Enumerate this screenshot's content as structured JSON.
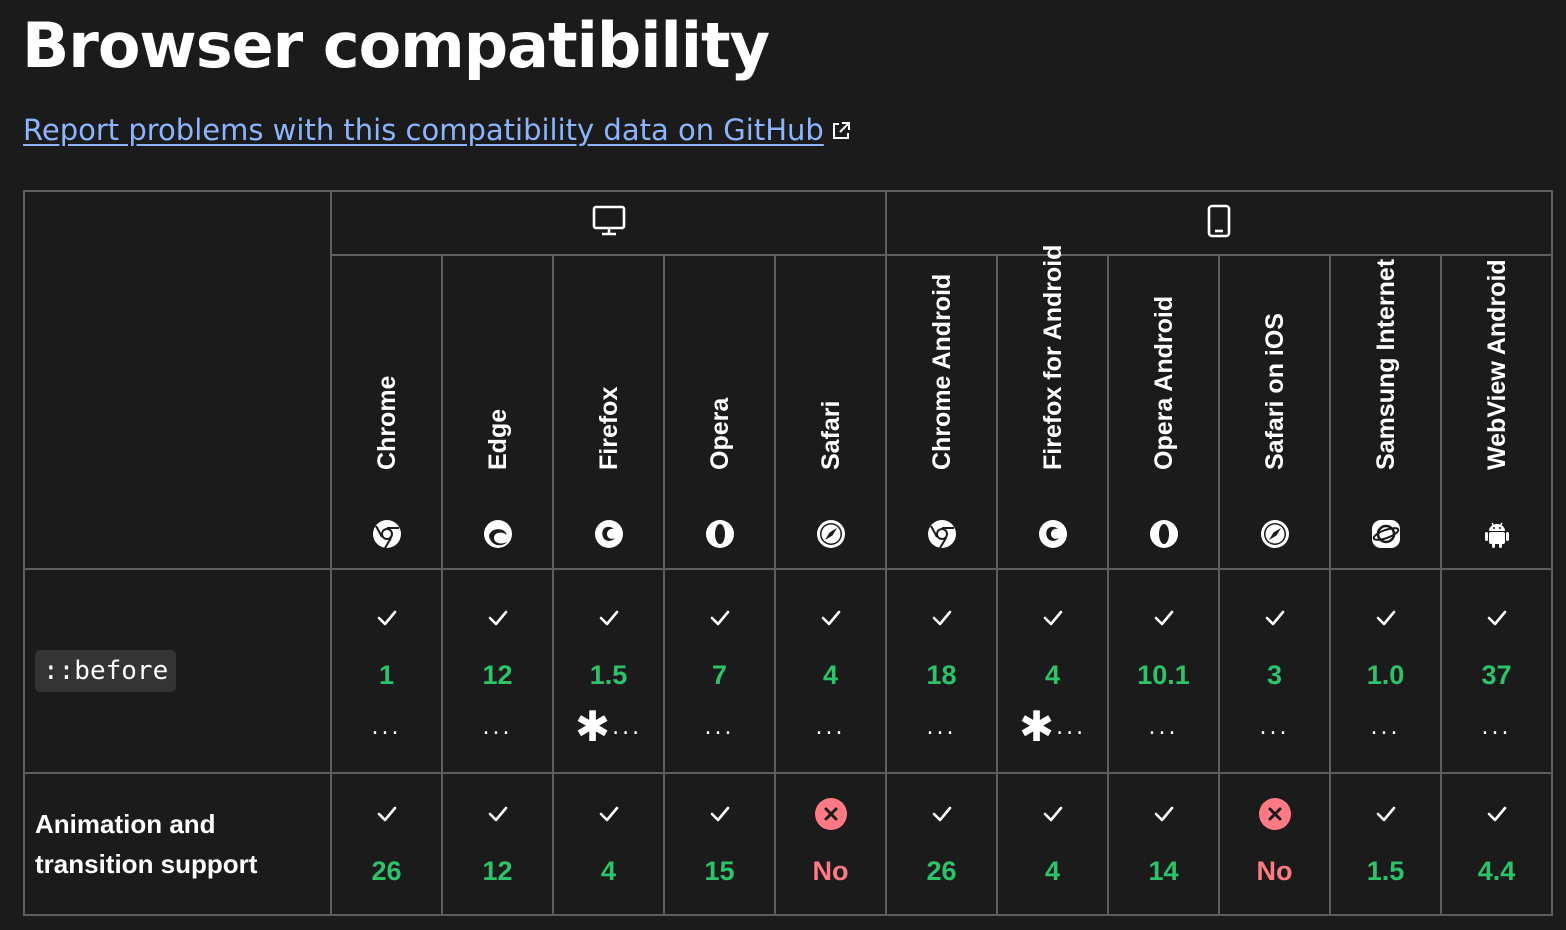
{
  "page": {
    "title": "Browser compatibility",
    "report_link": "Report problems with this compatibility data on GitHub"
  },
  "platforms": [
    {
      "name": "desktop",
      "icon": "desktop-icon"
    },
    {
      "name": "mobile",
      "icon": "mobile-icon"
    }
  ],
  "browsers": [
    {
      "label": "Chrome",
      "icon": "chrome-icon"
    },
    {
      "label": "Edge",
      "icon": "edge-icon"
    },
    {
      "label": "Firefox",
      "icon": "firefox-icon"
    },
    {
      "label": "Opera",
      "icon": "opera-icon"
    },
    {
      "label": "Safari",
      "icon": "safari-icon"
    },
    {
      "label": "Chrome Android",
      "icon": "chrome-icon"
    },
    {
      "label": "Firefox for Android",
      "icon": "firefox-icon"
    },
    {
      "label": "Opera Android",
      "icon": "opera-icon"
    },
    {
      "label": "Safari on iOS",
      "icon": "safari-icon"
    },
    {
      "label": "Samsung Internet",
      "icon": "samsung-icon"
    },
    {
      "label": "WebView Android",
      "icon": "android-icon"
    }
  ],
  "features": [
    {
      "name": "::before",
      "code": true,
      "support": [
        {
          "status": "yes",
          "version": "1",
          "notes": "...",
          "asterisk": false
        },
        {
          "status": "yes",
          "version": "12",
          "notes": "...",
          "asterisk": false
        },
        {
          "status": "yes",
          "version": "1.5",
          "notes": "...",
          "asterisk": true
        },
        {
          "status": "yes",
          "version": "7",
          "notes": "...",
          "asterisk": false
        },
        {
          "status": "yes",
          "version": "4",
          "notes": "...",
          "asterisk": false
        },
        {
          "status": "yes",
          "version": "18",
          "notes": "...",
          "asterisk": false
        },
        {
          "status": "yes",
          "version": "4",
          "notes": "...",
          "asterisk": true
        },
        {
          "status": "yes",
          "version": "10.1",
          "notes": "...",
          "asterisk": false
        },
        {
          "status": "yes",
          "version": "3",
          "notes": "...",
          "asterisk": false
        },
        {
          "status": "yes",
          "version": "1.0",
          "notes": "...",
          "asterisk": false
        },
        {
          "status": "yes",
          "version": "37",
          "notes": "...",
          "asterisk": false
        }
      ]
    },
    {
      "name": "Animation and transition support",
      "code": false,
      "support": [
        {
          "status": "yes",
          "version": "26"
        },
        {
          "status": "yes",
          "version": "12"
        },
        {
          "status": "yes",
          "version": "4"
        },
        {
          "status": "yes",
          "version": "15"
        },
        {
          "status": "no",
          "version": "No"
        },
        {
          "status": "yes",
          "version": "26"
        },
        {
          "status": "yes",
          "version": "4"
        },
        {
          "status": "yes",
          "version": "14"
        },
        {
          "status": "no",
          "version": "No"
        },
        {
          "status": "yes",
          "version": "1.5"
        },
        {
          "status": "yes",
          "version": "4.4"
        }
      ]
    }
  ],
  "colors": {
    "background": "#1b1b1b",
    "border": "#5e5e5e",
    "link": "#8cb4ff",
    "yes": "#2cc36a",
    "no": "#ff7a85"
  }
}
